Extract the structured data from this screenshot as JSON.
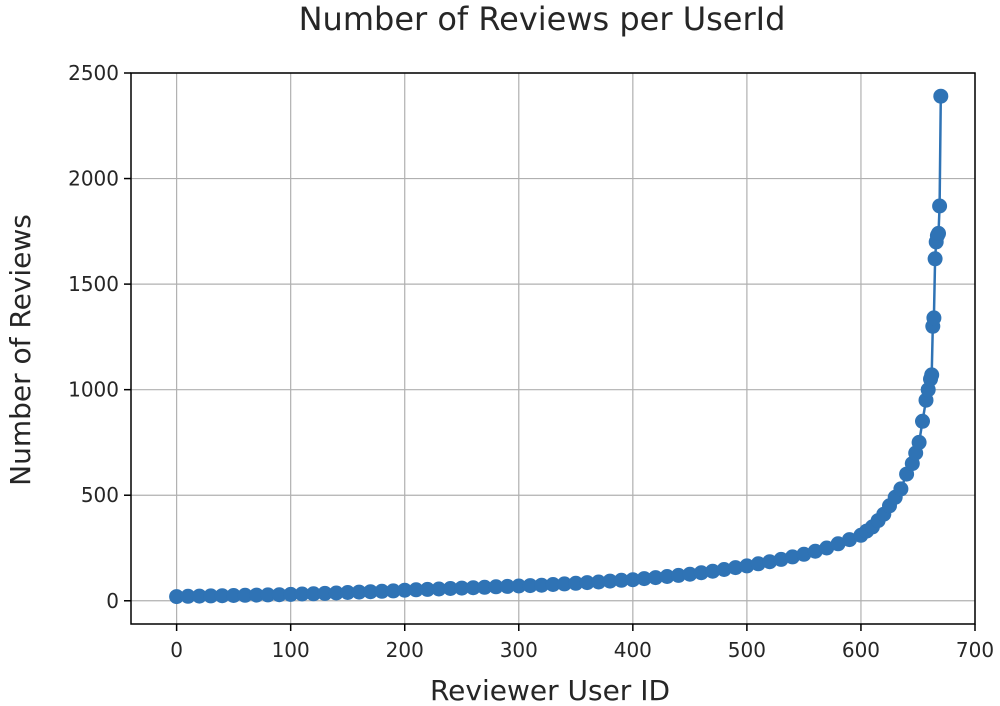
{
  "chart_data": {
    "type": "line",
    "title": "Number of Reviews per UserId",
    "xlabel": "Reviewer User ID",
    "ylabel": "Number of Reviews",
    "xlim": [
      -40,
      700
    ],
    "ylim": [
      -110,
      2500
    ],
    "xticks": [
      0,
      100,
      200,
      300,
      400,
      500,
      600,
      700
    ],
    "yticks": [
      0,
      500,
      1000,
      1500,
      2000,
      2500
    ],
    "grid": true,
    "marker": "circle",
    "color": "#2f73b5",
    "series": [
      {
        "x": [
          0,
          10,
          20,
          30,
          40,
          50,
          60,
          70,
          80,
          90,
          100,
          110,
          120,
          130,
          140,
          150,
          160,
          170,
          180,
          190,
          200,
          210,
          220,
          230,
          240,
          250,
          260,
          270,
          280,
          290,
          300,
          310,
          320,
          330,
          340,
          350,
          360,
          370,
          380,
          390,
          400,
          410,
          420,
          430,
          440,
          450,
          460,
          470,
          480,
          490,
          500,
          510,
          520,
          530,
          540,
          550,
          560,
          570,
          580,
          590,
          600,
          605,
          610,
          615,
          620,
          625,
          630,
          635,
          640,
          645,
          648,
          651,
          654,
          657,
          659,
          661,
          662,
          663,
          664,
          665,
          666,
          667,
          668,
          669,
          670
        ],
        "y": [
          20,
          21,
          22,
          23,
          24,
          25,
          26,
          27,
          28,
          29,
          30,
          32,
          33,
          35,
          37,
          39,
          41,
          43,
          45,
          47,
          50,
          52,
          54,
          56,
          58,
          60,
          62,
          64,
          66,
          68,
          70,
          72,
          74,
          77,
          80,
          83,
          86,
          89,
          93,
          97,
          100,
          105,
          110,
          115,
          120,
          126,
          133,
          140,
          148,
          157,
          165,
          175,
          185,
          196,
          208,
          220,
          235,
          250,
          270,
          290,
          310,
          330,
          350,
          380,
          410,
          450,
          490,
          530,
          600,
          650,
          700,
          750,
          850,
          950,
          1000,
          1050,
          1070,
          1300,
          1340,
          1620,
          1700,
          1730,
          1740,
          1870,
          2390
        ]
      }
    ]
  }
}
